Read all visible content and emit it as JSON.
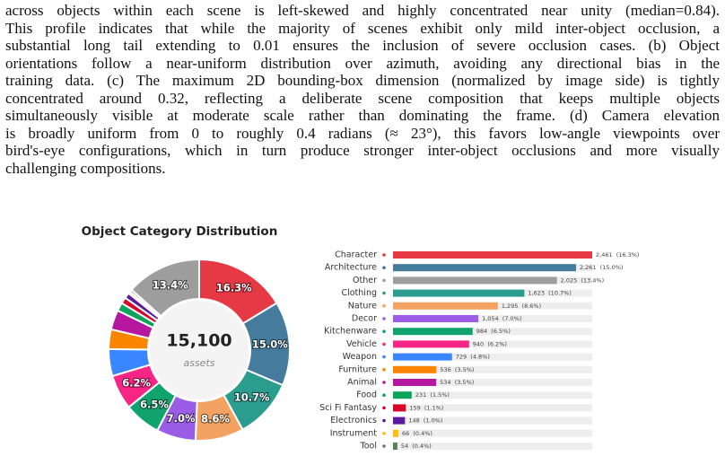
{
  "paragraph": {
    "lines": [
      "across objects within each scene is left-skewed and highly concentrated near unity (median=0.84).",
      "This profile indicates that while the majority of scenes exhibit only mild inter-object occlusion, a",
      "substantial long tail extending to 0.01 ensures the inclusion of severe occlusion cases. (b) Object",
      "orientations follow a near-uniform distribution over azimuth, avoiding any directional bias in the",
      "training data. (c) The maximum 2D bounding-box dimension (normalized by image side) is tightly",
      "concentrated around 0.32, reflecting a deliberate scene composition that keeps multiple objects",
      "simultaneously visible at moderate scale rather than dominating the frame. (d) Camera elevation",
      "is broadly uniform from 0 to roughly 0.4 radians (≈ 23°), this favors low-angle viewpoints over",
      "bird's-eye configurations, which in turn produce stronger inter-object occlusions and more visually",
      "challenging compositions."
    ]
  },
  "chart_data": [
    {
      "type": "donut",
      "title": "Object Category Distribution",
      "center_label": "15,100",
      "center_sublabel": "assets",
      "categories": [
        "Character",
        "Architecture",
        "Clothing",
        "Nature",
        "Decor",
        "Kitchenware",
        "Vehicle",
        "Weapon",
        "Furniture",
        "Animal",
        "Food",
        "Sci Fi Fantasy",
        "Electronics",
        "Instrument",
        "Tool",
        "Other"
      ],
      "values": [
        16.3,
        15.0,
        10.7,
        8.6,
        7.0,
        6.5,
        6.2,
        4.8,
        3.5,
        3.5,
        1.5,
        1.1,
        1.0,
        0.4,
        0.4,
        13.4
      ],
      "value_labels": [
        "16.3%",
        "15.0%",
        "10.7%",
        "8.6%",
        "7.0%",
        "6.5%",
        "6.2%",
        null,
        null,
        null,
        null,
        null,
        null,
        null,
        null,
        "13.4%"
      ],
      "colors": [
        "#e63946",
        "#457b9d",
        "#2a9d8f",
        "#f4a261",
        "#9b5de5",
        "#10a36e",
        "#f72585",
        "#3a86ff",
        "#fb8500",
        "#b5179e",
        "#0ea35a",
        "#d90429",
        "#5a189a",
        "#ffbe0b",
        "#588157",
        "#9e9e9e"
      ]
    },
    {
      "type": "hbar",
      "categories": [
        "Character",
        "Architecture",
        "Other",
        "Clothing",
        "Nature",
        "Decor",
        "Kitchenware",
        "Vehicle",
        "Weapon",
        "Furniture",
        "Animal",
        "Food",
        "Sci Fi Fantasy",
        "Electronics",
        "Instrument",
        "Tool"
      ],
      "values": [
        2461,
        2261,
        2025,
        1623,
        1295,
        1054,
        984,
        940,
        729,
        536,
        534,
        231,
        159,
        148,
        66,
        54
      ],
      "value_labels": [
        "2,461  (16.3%)",
        "2,261  (15.0%)",
        "2,025  (13.4%)",
        "1,623  (10.7%)",
        "1,295  (8.6%)",
        "1,054  (7.0%)",
        "984  (6.5%)",
        "940  (6.2%)",
        "729  (4.8%)",
        "536  (3.5%)",
        "534  (3.5%)",
        "231  (1.5%)",
        "159  (1.1%)",
        "148  (1.0%)",
        "66  (0.4%)",
        "54  (0.4%)"
      ],
      "colors": [
        "#e63946",
        "#457b9d",
        "#9e9e9e",
        "#2a9d8f",
        "#f4a261",
        "#9b5de5",
        "#10a36e",
        "#f72585",
        "#3a86ff",
        "#fb8500",
        "#b5179e",
        "#0ea35a",
        "#d90429",
        "#5a189a",
        "#ffbe0b",
        "#588157"
      ]
    }
  ]
}
